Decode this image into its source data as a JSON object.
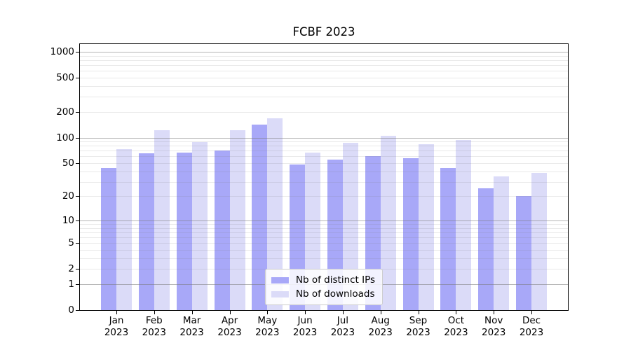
{
  "chart_data": {
    "type": "bar",
    "title": "FCBF 2023",
    "categories": [
      "Jan",
      "Feb",
      "Mar",
      "Apr",
      "May",
      "Jun",
      "Jul",
      "Aug",
      "Sep",
      "Oct",
      "Nov",
      "Dec"
    ],
    "category_year": "2023",
    "series": [
      {
        "name": "Nb of distinct IPs",
        "color": "#a8a8f8",
        "values": [
          44,
          65,
          66,
          71,
          141,
          48,
          55,
          61,
          57,
          44,
          25,
          20
        ]
      },
      {
        "name": "Nb of downloads",
        "color": "#dbdbf8",
        "values": [
          73,
          123,
          88,
          121,
          168,
          67,
          87,
          104,
          83,
          94,
          35,
          38
        ]
      }
    ],
    "y_scale": "log10(1+x)",
    "y_ticks": [
      0,
      1,
      2,
      5,
      10,
      20,
      50,
      100,
      200,
      500,
      1000
    ],
    "ylim": [
      0,
      1228
    ],
    "grid": true,
    "legend_position": "lower center",
    "colors": {
      "background": "#ffffff",
      "spine": "#000000",
      "major_grid": "rgba(120,120,120,0.55)",
      "minor_grid": "rgba(120,120,120,0.16)",
      "text": "#000000"
    }
  }
}
